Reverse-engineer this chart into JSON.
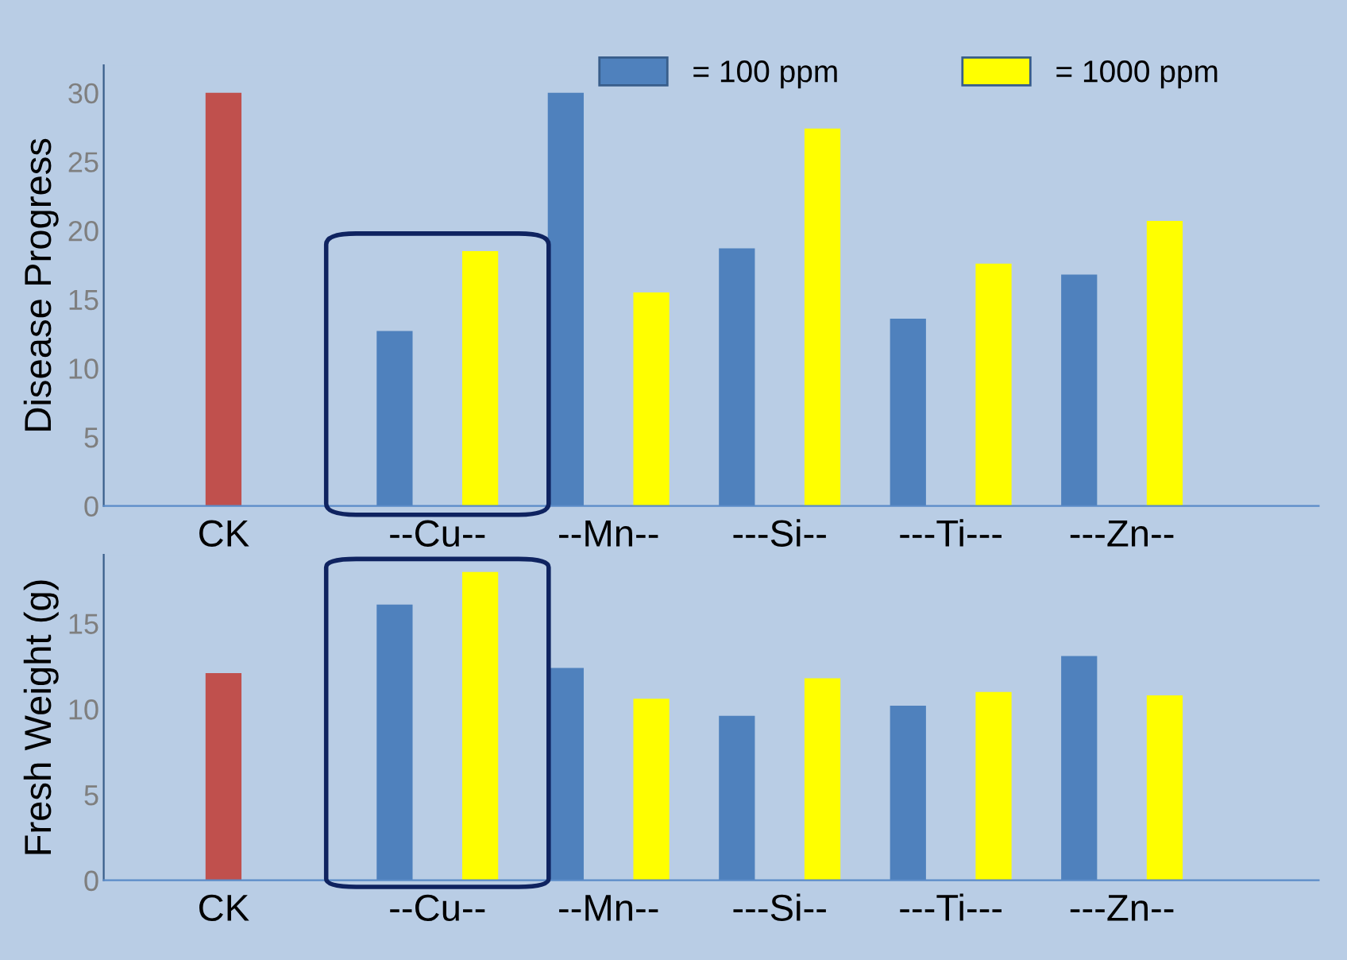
{
  "chart_data": [
    {
      "type": "bar",
      "ylabel": "Disease Progress",
      "categories": [
        "CK",
        "--Cu--",
        "--Mn--",
        "---Si--",
        "---Ti---",
        "---Zn--"
      ],
      "series": [
        {
          "color": "#c0504d",
          "values": [
            30,
            null,
            null,
            null,
            null,
            null
          ]
        },
        {
          "name": "= 100 ppm",
          "color": "#4f81bd",
          "values": [
            null,
            12.7,
            30,
            18.7,
            13.6,
            16.8
          ]
        },
        {
          "name": "= 1000 ppm",
          "color": "#ffff00",
          "values": [
            null,
            18.5,
            15.5,
            27.4,
            17.6,
            20.7
          ]
        }
      ],
      "ylim": [
        0,
        32
      ],
      "yticks": [
        0,
        5,
        10,
        15,
        20,
        25,
        30
      ],
      "legend": "top",
      "grid": false
    },
    {
      "type": "bar",
      "ylabel": "Fresh Weight (g)",
      "categories": [
        "CK",
        "--Cu--",
        "--Mn--",
        "---Si--",
        "---Ti---",
        "---Zn--"
      ],
      "series": [
        {
          "color": "#c0504d",
          "values": [
            12.1,
            null,
            null,
            null,
            null,
            null
          ]
        },
        {
          "color": "#4f81bd",
          "values": [
            null,
            16.1,
            12.4,
            9.6,
            10.2,
            13.1
          ]
        },
        {
          "color": "#ffff00",
          "values": [
            null,
            18.0,
            10.6,
            11.8,
            11.0,
            10.8
          ]
        }
      ],
      "ylim": [
        0,
        19
      ],
      "yticks": [
        0,
        5,
        10,
        15
      ],
      "legend": false,
      "grid": false
    }
  ]
}
